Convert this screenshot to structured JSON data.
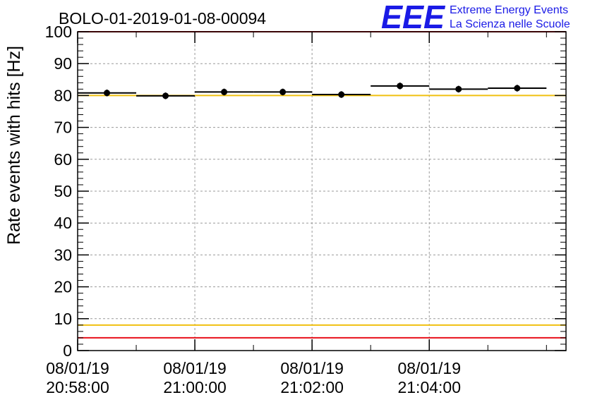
{
  "chart_data": {
    "type": "scatter",
    "title": "BOLO-01-2019-01-08-00094",
    "ylabel": "Rate events with hits [Hz]",
    "xlabel": "",
    "ylim": [
      0,
      100
    ],
    "xlim": [
      "20:58:00",
      "21:06:20"
    ],
    "grid": true,
    "yticks": [
      0,
      10,
      20,
      30,
      40,
      50,
      60,
      70,
      80,
      90,
      100
    ],
    "xticks": [
      {
        "time": "20:58:00",
        "date": "08/01/19",
        "label": "20:58:00"
      },
      {
        "time": "21:00:00",
        "date": "08/01/19",
        "label": "21:00:00"
      },
      {
        "time": "21:02:00",
        "date": "08/01/19",
        "label": "21:02:00"
      },
      {
        "time": "21:04:00",
        "date": "08/01/19",
        "label": "21:04:00"
      }
    ],
    "series": [
      {
        "points": [
          {
            "x_start": "20:58:00",
            "x_end": "20:59:00",
            "x": "20:58:30",
            "y": 80.8,
            "err": 0.6
          },
          {
            "x_start": "20:59:00",
            "x_end": "21:00:00",
            "x": "20:59:30",
            "y": 79.9,
            "err": 0.6
          },
          {
            "x_start": "21:00:00",
            "x_end": "21:01:00",
            "x": "21:00:30",
            "y": 81.1,
            "err": 0.6
          },
          {
            "x_start": "21:01:00",
            "x_end": "21:02:00",
            "x": "21:01:30",
            "y": 81.1,
            "err": 0.6
          },
          {
            "x_start": "21:02:00",
            "x_end": "21:03:00",
            "x": "21:02:30",
            "y": 80.3,
            "err": 0.6
          },
          {
            "x_start": "21:03:00",
            "x_end": "21:04:00",
            "x": "21:03:30",
            "y": 83.0,
            "err": 0.6
          },
          {
            "x_start": "21:04:00",
            "x_end": "21:05:00",
            "x": "21:04:30",
            "y": 82.0,
            "err": 0.6
          },
          {
            "x_start": "21:05:00",
            "x_end": "21:06:00",
            "x": "21:05:30",
            "y": 82.3,
            "err": 0.6
          }
        ]
      }
    ],
    "reference_lines": [
      {
        "y": 100,
        "color": "#e8101a"
      },
      {
        "y": 80,
        "color": "#f0c010"
      },
      {
        "y": 8,
        "color": "#f0c010"
      },
      {
        "y": 4,
        "color": "#e8101a"
      }
    ]
  },
  "logo": {
    "text": "EEE",
    "line1": "Extreme Energy Events",
    "line2": "La Scienza nelle Scuole",
    "color": "#1a1ae6"
  }
}
